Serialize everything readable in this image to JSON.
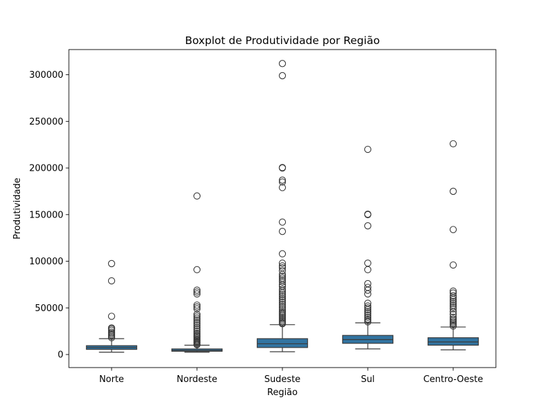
{
  "chart_data": {
    "type": "box",
    "title": "Boxplot de Produtividade por Região",
    "xlabel": "Região",
    "ylabel": "Produtividade",
    "ylim": [
      -14000,
      327000
    ],
    "yticks": [
      0,
      50000,
      100000,
      150000,
      200000,
      250000,
      300000
    ],
    "ytick_labels": [
      "0",
      "50000",
      "100000",
      "150000",
      "200000",
      "250000",
      "300000"
    ],
    "grid": false,
    "legend": "none",
    "box_color": "#3274a1",
    "line_color": "#3b3b3b",
    "categories": [
      "Norte",
      "Nordeste",
      "Sudeste",
      "Sul",
      "Centro-Oeste"
    ],
    "boxes": [
      {
        "category": "Norte",
        "whisker_low": 2500,
        "q1": 5500,
        "median": 7500,
        "q3": 9500,
        "whisker_high": 17000,
        "outliers": [
          18000,
          19500,
          21000,
          22500,
          24000,
          26000,
          27500,
          28500,
          41000,
          79000,
          97500
        ]
      },
      {
        "category": "Nordeste",
        "whisker_low": 2500,
        "q1": 3500,
        "median": 4500,
        "q3": 6000,
        "whisker_high": 10000,
        "outliers": [
          10500,
          11000,
          12000,
          13000,
          14000,
          15000,
          16000,
          17500,
          19000,
          20000,
          21500,
          23000,
          25000,
          27000,
          29000,
          31000,
          33000,
          35000,
          37000,
          39000,
          41000,
          43000,
          49000,
          51000,
          53000,
          65000,
          67000,
          69000,
          91000,
          170000
        ]
      },
      {
        "category": "Sudeste",
        "whisker_low": 3000,
        "q1": 7500,
        "median": 11500,
        "q3": 17000,
        "whisker_high": 32000,
        "outliers": [
          33000,
          34000,
          35500,
          37000,
          38500,
          40000,
          41500,
          43000,
          44500,
          46000,
          48000,
          50000,
          52000,
          54000,
          56000,
          58000,
          60000,
          62000,
          64000,
          66000,
          68000,
          70000,
          73000,
          75000,
          78000,
          80000,
          82000,
          84000,
          86000,
          90000,
          93000,
          95000,
          98000,
          108000,
          132000,
          142000,
          179000,
          185000,
          187000,
          200000,
          200500,
          299000,
          312000
        ]
      },
      {
        "category": "Sul",
        "whisker_low": 6000,
        "q1": 12000,
        "median": 16000,
        "q3": 20500,
        "whisker_high": 34000,
        "outliers": [
          35000,
          36500,
          38000,
          40000,
          42000,
          44000,
          46000,
          48000,
          50000,
          52000,
          55000,
          65000,
          69000,
          72000,
          76000,
          91000,
          98000,
          138000,
          150000,
          150500,
          220000
        ]
      },
      {
        "category": "Centro-Oeste",
        "whisker_low": 5000,
        "q1": 10000,
        "median": 13500,
        "q3": 18000,
        "whisker_high": 29500,
        "outliers": [
          30500,
          32000,
          33500,
          35000,
          36500,
          38000,
          40000,
          43000,
          46000,
          49000,
          51000,
          53000,
          55000,
          57000,
          59000,
          61000,
          63000,
          66000,
          68000,
          96000,
          134000,
          175000,
          226000
        ]
      }
    ]
  }
}
